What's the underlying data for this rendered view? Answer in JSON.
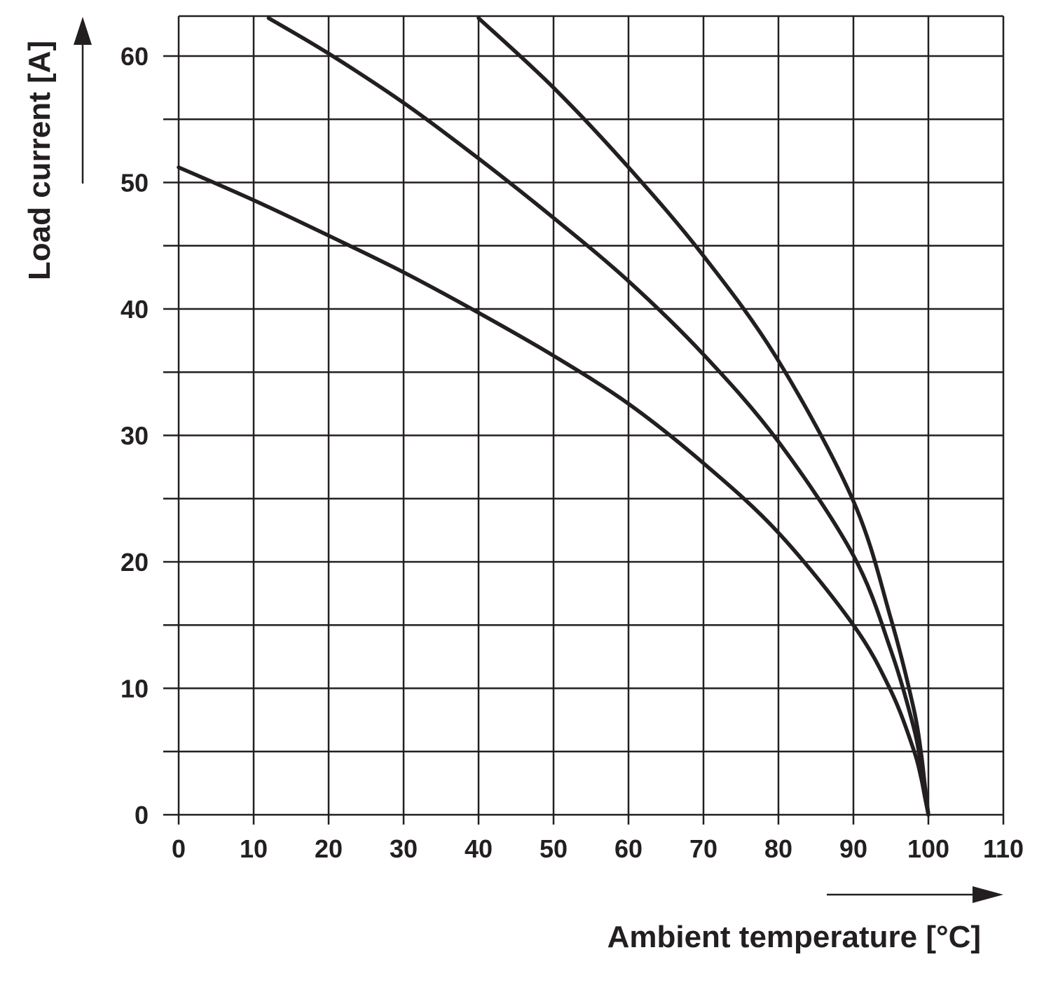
{
  "chart_data": {
    "type": "line",
    "title": "",
    "xlabel": "Ambient temperature [°C]",
    "ylabel": "Load current [A]",
    "xlim": [
      0,
      110
    ],
    "ylim": [
      0,
      60
    ],
    "x_ticks": [
      0,
      10,
      20,
      30,
      40,
      50,
      60,
      70,
      80,
      90,
      100,
      110
    ],
    "y_ticks": [
      0,
      10,
      20,
      30,
      40,
      50,
      60
    ],
    "x_tick_labels": [
      "0",
      "10",
      "20",
      "30",
      "40",
      "50",
      "60",
      "70",
      "80",
      "90",
      "100",
      "110"
    ],
    "y_tick_labels": [
      "0",
      "10",
      "20",
      "30",
      "40",
      "50",
      "60"
    ],
    "grid": true,
    "series": [
      {
        "x": [
          0,
          10,
          20,
          30,
          40,
          50,
          60,
          70,
          80,
          90,
          95,
          98,
          99,
          99.5,
          100
        ],
        "values": [
          51.2,
          48.6,
          45.8,
          42.9,
          39.7,
          36.3,
          32.5,
          27.8,
          22.3,
          15.0,
          9.8,
          5.2,
          3.0,
          1.5,
          0
        ]
      },
      {
        "x": [
          12,
          20,
          30,
          40,
          50,
          60,
          70,
          80,
          90,
          95,
          98,
          99,
          99.5,
          100
        ],
        "values": [
          63,
          60.2,
          56.3,
          51.9,
          47.2,
          42.2,
          36.4,
          29.5,
          20.5,
          13.0,
          7.0,
          4.0,
          2.0,
          0
        ]
      },
      {
        "x": [
          40,
          50,
          60,
          70,
          80,
          90,
          95,
          98,
          99,
          99.5,
          100
        ],
        "values": [
          63,
          57.5,
          51.2,
          44.2,
          35.9,
          24.8,
          15.5,
          8.5,
          5.0,
          2.5,
          0
        ]
      }
    ]
  }
}
